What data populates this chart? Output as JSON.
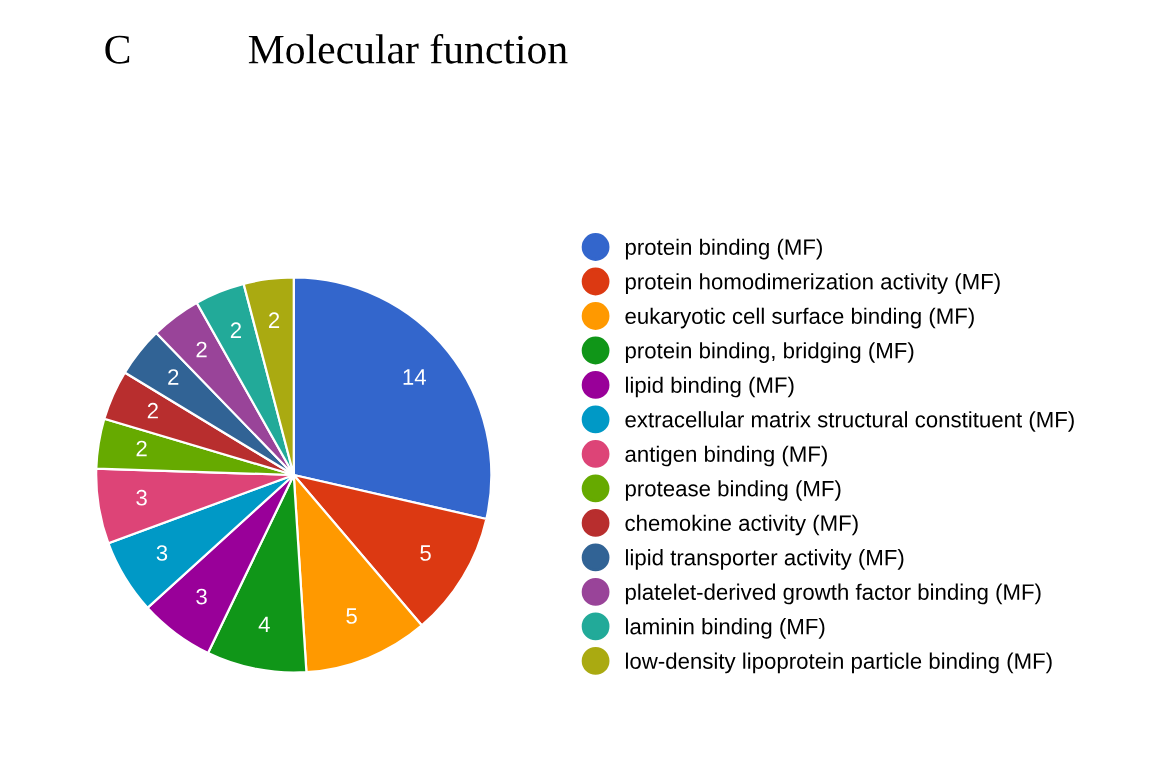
{
  "chart_data": {
    "type": "pie",
    "title": "Molecular function",
    "annotations": [
      "C"
    ],
    "categories": [
      "protein binding (MF)",
      "protein homodimerization activity (MF)",
      "eukaryotic cell surface binding (MF)",
      "protein binding, bridging (MF)",
      "lipid binding (MF)",
      "extracellular matrix structural constituent (MF)",
      "antigen binding (MF)",
      "protease binding (MF)",
      "chemokine activity (MF)",
      "lipid transporter activity (MF)",
      "platelet-derived growth factor binding (MF)",
      "laminin binding (MF)",
      "low-density lipoprotein particle binding (MF)"
    ],
    "values": [
      14,
      5,
      5,
      4,
      3,
      3,
      3,
      2,
      2,
      2,
      2,
      2,
      2
    ],
    "colors": [
      "#3366cc",
      "#dc3912",
      "#ff9900",
      "#109618",
      "#990099",
      "#0099c6",
      "#dd4477",
      "#66aa00",
      "#b82e2e",
      "#316395",
      "#994499",
      "#22aa99",
      "#aaaa11"
    ],
    "data_labels": true,
    "legend": "right"
  }
}
